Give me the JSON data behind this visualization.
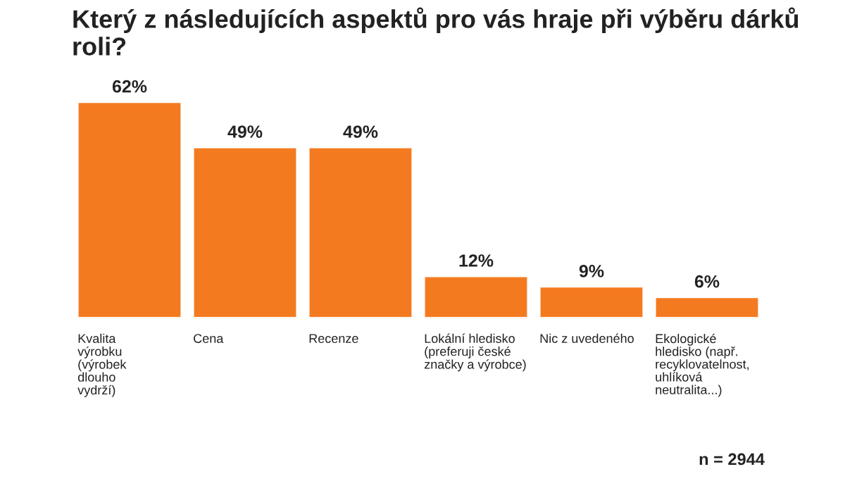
{
  "chart_data": {
    "type": "bar",
    "title": "Který z následujících aspektů pro vás hraje při výběru dárků roli?",
    "categories": [
      "Kvalita\nvýrobku\n(výrobek\ndlouho\nvydrží)",
      "Cena",
      "Recenze",
      "Lokální hledisko\n(preferuji české\nznačky a výrobce)",
      "Nic z uvedeného",
      "Ekologické\nhledisko (např.\nrecyklovatelnost,\nuhlíková\nneutralita...)"
    ],
    "values": [
      62,
      49,
      49,
      12,
      9,
      6
    ],
    "value_labels": [
      "62%",
      "49%",
      "49%",
      "12%",
      "9%",
      "6%"
    ],
    "color": "#f47a20",
    "annotations": [
      "n = 2944"
    ],
    "grid": false,
    "legend": false
  }
}
